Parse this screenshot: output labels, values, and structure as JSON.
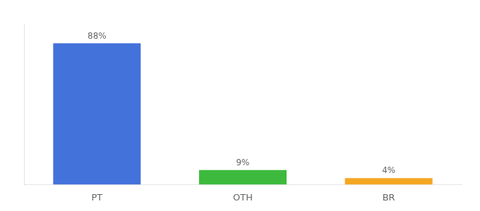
{
  "chart_data": {
    "type": "bar",
    "categories": [
      "PT",
      "OTH",
      "BR"
    ],
    "values": [
      88,
      9,
      4
    ],
    "value_labels": [
      "88%",
      "9%",
      "4%"
    ],
    "colors": [
      "#4472db",
      "#3dba3d",
      "#f5a623"
    ],
    "ylim": [
      0,
      100
    ],
    "grid": false,
    "data_labels": true,
    "tick_labels": "x"
  }
}
